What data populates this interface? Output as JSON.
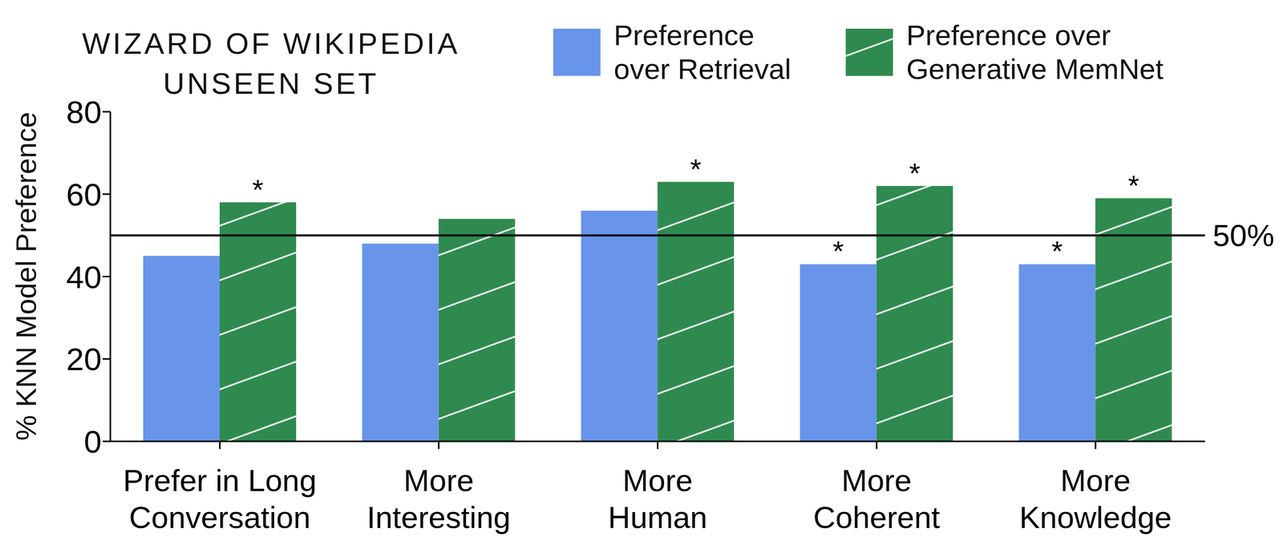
{
  "chart_data": {
    "type": "bar",
    "title": "WIZARD OF WIKIPEDIA UNSEEN SET",
    "y_label": "% KNN Model Preference",
    "categories": [
      "Prefer in Long Conversation",
      "More Interesting",
      "More Human",
      "More Coherent",
      "More Knowledge"
    ],
    "series": [
      {
        "name": "Preference over Retrieval",
        "color": "#6895ea",
        "values": [
          45,
          48,
          56,
          43,
          43
        ],
        "significant": [
          false,
          false,
          false,
          true,
          true
        ]
      },
      {
        "name": "Preference over Generative MemNet",
        "color": "#2f8a4f",
        "values": [
          58,
          54,
          63,
          62,
          59
        ],
        "significant": [
          true,
          false,
          true,
          true,
          true
        ]
      }
    ],
    "significance_mark": "*",
    "reference_line": {
      "value": 50,
      "label": "50%"
    },
    "ylim": [
      0,
      80
    ],
    "yticks": [
      0,
      20,
      40,
      60,
      80
    ],
    "grid": false,
    "legend": "top-right"
  }
}
